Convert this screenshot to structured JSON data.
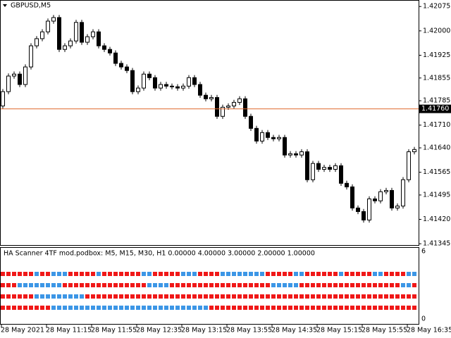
{
  "chart_data": [
    {
      "type": "candlestick",
      "title": "GBPUSD,M5",
      "categories": [
        "28 May 2021",
        null,
        null,
        null,
        null,
        null,
        null,
        null,
        "28 May 11:15",
        null,
        null,
        null,
        null,
        null,
        null,
        null,
        "28 May 11:55",
        null,
        null,
        null,
        null,
        null,
        null,
        null,
        "28 May 12:35",
        null,
        null,
        null,
        null,
        null,
        null,
        null,
        "28 May 13:15",
        null,
        null,
        null,
        null,
        null,
        null,
        null,
        "28 May 13:55",
        null,
        null,
        null,
        null,
        null,
        null,
        null,
        "28 May 14:35",
        null,
        null,
        null,
        null,
        null,
        null,
        null,
        "28 May 15:15",
        null,
        null,
        null,
        null,
        null,
        null,
        null,
        "28 May 15:55",
        null,
        null,
        null,
        null,
        null,
        null,
        null,
        "28 May 16:35",
        null
      ],
      "open": [
        1.41769,
        1.41813,
        1.41861,
        1.41867,
        1.41835,
        1.41889,
        1.41954,
        1.41976,
        1.41997,
        1.4203,
        1.42041,
        1.41943,
        1.41954,
        1.41969,
        1.42026,
        1.41965,
        1.41982,
        1.41997,
        1.41954,
        1.41943,
        1.41932,
        1.419,
        1.41889,
        1.41878,
        1.41813,
        1.41824,
        1.41867,
        1.41856,
        1.41824,
        1.41835,
        1.4183,
        1.41828,
        1.41824,
        1.4183,
        1.41856,
        1.41835,
        1.41802,
        1.41791,
        1.41795,
        1.41737,
        1.41765,
        1.41769,
        1.4178,
        1.41791,
        1.41737,
        1.417,
        1.41661,
        1.41687,
        1.41672,
        1.41668,
        1.41672,
        1.41618,
        1.41622,
        1.41618,
        1.41628,
        1.41542,
        1.41592,
        1.41574,
        1.4158,
        1.41574,
        1.41585,
        1.41531,
        1.4152,
        1.41455,
        1.41444,
        1.41418,
        1.41483,
        1.41477,
        1.41505,
        1.41509,
        1.41455,
        1.41461,
        1.41542,
        1.41628
      ],
      "high": [
        1.41821,
        1.41869,
        1.41875,
        1.41875,
        1.41897,
        1.41962,
        1.41984,
        1.42005,
        1.42038,
        1.42049,
        1.42049,
        1.41962,
        1.41977,
        1.42034,
        1.42034,
        1.4199,
        1.42005,
        1.42005,
        1.41962,
        1.41951,
        1.4194,
        1.41908,
        1.41897,
        1.41886,
        1.41832,
        1.41875,
        1.41875,
        1.41864,
        1.41843,
        1.41843,
        1.41838,
        1.41836,
        1.41838,
        1.41864,
        1.41864,
        1.41843,
        1.4181,
        1.41803,
        1.41803,
        1.41773,
        1.41777,
        1.41788,
        1.41799,
        1.41799,
        1.41745,
        1.41708,
        1.41695,
        1.41695,
        1.4168,
        1.4168,
        1.4168,
        1.4163,
        1.4163,
        1.41636,
        1.41636,
        1.416,
        1.416,
        1.41588,
        1.41588,
        1.41593,
        1.41593,
        1.41539,
        1.41528,
        1.41463,
        1.41452,
        1.41491,
        1.41491,
        1.41513,
        1.41517,
        1.41517,
        1.41469,
        1.4155,
        1.41636,
        1.41643
      ],
      "low": [
        1.41761,
        1.41805,
        1.41853,
        1.41827,
        1.41827,
        1.41881,
        1.41946,
        1.41968,
        1.41989,
        1.42022,
        1.41935,
        1.41935,
        1.41946,
        1.41961,
        1.41957,
        1.41957,
        1.41974,
        1.41946,
        1.41935,
        1.41924,
        1.41892,
        1.41881,
        1.4187,
        1.41805,
        1.41805,
        1.41816,
        1.41848,
        1.41816,
        1.41816,
        1.41822,
        1.4182,
        1.41816,
        1.41816,
        1.41822,
        1.41827,
        1.41794,
        1.41783,
        1.41783,
        1.41729,
        1.41729,
        1.41757,
        1.41761,
        1.41772,
        1.41729,
        1.41692,
        1.41653,
        1.41653,
        1.41664,
        1.4166,
        1.4166,
        1.4161,
        1.4161,
        1.4161,
        1.4161,
        1.41534,
        1.41534,
        1.41566,
        1.41566,
        1.41566,
        1.41566,
        1.41523,
        1.41512,
        1.41447,
        1.41436,
        1.4141,
        1.4141,
        1.41469,
        1.41469,
        1.41497,
        1.41447,
        1.41447,
        1.41453,
        1.41534,
        1.4162
      ],
      "close": [
        1.41813,
        1.41861,
        1.41867,
        1.41835,
        1.41889,
        1.41954,
        1.41976,
        1.41997,
        1.4203,
        1.42041,
        1.41943,
        1.41954,
        1.41969,
        1.42026,
        1.41965,
        1.41982,
        1.41997,
        1.41954,
        1.41943,
        1.41932,
        1.419,
        1.41889,
        1.41878,
        1.41813,
        1.41824,
        1.41867,
        1.41856,
        1.41824,
        1.41835,
        1.4183,
        1.41828,
        1.41824,
        1.4183,
        1.41856,
        1.41835,
        1.41802,
        1.41791,
        1.41795,
        1.41737,
        1.41765,
        1.41769,
        1.4178,
        1.41791,
        1.41737,
        1.417,
        1.41661,
        1.41687,
        1.41672,
        1.41668,
        1.41672,
        1.41618,
        1.41622,
        1.41618,
        1.41628,
        1.41542,
        1.41592,
        1.41574,
        1.4158,
        1.41574,
        1.41585,
        1.41531,
        1.4152,
        1.41455,
        1.41444,
        1.41418,
        1.41483,
        1.41477,
        1.41505,
        1.41509,
        1.41455,
        1.41461,
        1.41542,
        1.41628,
        1.41635
      ],
      "ylim": [
        1.41341,
        1.42095
      ],
      "yticks": [
        1.42075,
        {
          "value": 1.42,
          "label": "1.42000"
        },
        1.41925,
        1.41855,
        1.41785,
        {
          "value": 1.4171,
          "label": "1.41710"
        },
        {
          "value": 1.4164,
          "label": "1.41640"
        },
        1.41565,
        1.41495,
        {
          "value": 1.4142,
          "label": "1.41420"
        },
        1.41345
      ],
      "up_color": "#ffffff",
      "down_color": "#000000",
      "price_line": {
        "value": 1.4176,
        "label": "1.41760",
        "color": "#e0692e"
      }
    },
    {
      "type": "state-rows",
      "title": "HA Scanner 4TF mod.podbox: M5, M15, M30, H1 0.00000 4.00000 3.00000 2.00000 1.00000",
      "ylim": [
        0,
        6
      ],
      "yticks": [
        0,
        6
      ],
      "palette": {
        "R": "#f01818",
        "B": "#3c96e6"
      },
      "series": [
        {
          "value": 4,
          "states": "RRRRRRBRRBBBRRRRRBRRRRRRRBBRRRRRBBBRRRRBBBBBBBBRRRRRBBRRRRRRBRRRRRBBRRRRBB"
        },
        {
          "value": 3,
          "states": "RRRBBBBBBBBRRRRRRRRRRRRRRRBBBBRRRRRRRRRRRRRRRRRRBBBBBRRRRRRRRRRRRRRRRRRBBR"
        },
        {
          "value": 2,
          "states": "RRRRRRBBBBBBBBBRRRRRRRRRRRRRRRRRRRRRRRRRRRRRRRRRRRRRRRRRRRRRRRRRRRRRRRRRRR"
        },
        {
          "value": 1,
          "states": "RRRRRRRRRBBBBBBBBBBBBBBBBBBBBBBBBBBBBRRRRRRRRRRRRRRRRRRRRRRRRRRRRRRRRRRRRR"
        }
      ]
    }
  ]
}
